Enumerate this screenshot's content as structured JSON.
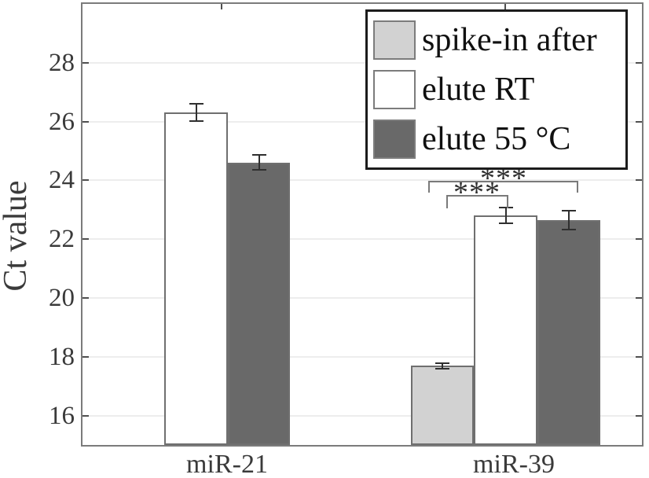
{
  "chart_data": {
    "type": "bar",
    "title": "",
    "xlabel": "",
    "ylabel": "Ct value",
    "categories": [
      "miR-21",
      "miR-39"
    ],
    "series": [
      {
        "name": "spike-in after",
        "fill": "#d2d2d2",
        "values": [
          null,
          17.7
        ],
        "errors": [
          null,
          0.12
        ]
      },
      {
        "name": "elute RT",
        "fill": "#ffffff",
        "values": [
          26.3,
          22.8
        ],
        "errors": [
          0.32,
          0.3
        ]
      },
      {
        "name": "elute 55 °C",
        "fill": "#696969",
        "values": [
          24.6,
          22.65
        ],
        "errors": [
          0.28,
          0.35
        ]
      }
    ],
    "ylim": [
      15,
      30
    ],
    "yticks": [
      16,
      18,
      20,
      22,
      24,
      26,
      28
    ],
    "grid": true,
    "legend_position": "top-right",
    "significance": [
      {
        "label": "***",
        "category": "miR-39",
        "between": [
          "spike-in after",
          "elute RT"
        ]
      },
      {
        "label": "***",
        "category": "miR-39",
        "between": [
          "spike-in after",
          "elute 55 °C"
        ]
      }
    ]
  },
  "colors": {
    "background": "#ffffff",
    "bar_light": "#d2d2d2",
    "bar_white": "#ffffff",
    "bar_dark": "#696969",
    "bar_edge": "#6f6f6f",
    "axis_frame": "#7b7b7b",
    "gridline": "#ededed",
    "tick": "#4f4f4f",
    "axis_text": "#3a3a3a",
    "error_bar": "#2f2f2f",
    "bracket": "#7a7a7a",
    "legend_border": "#1c1c1c"
  }
}
